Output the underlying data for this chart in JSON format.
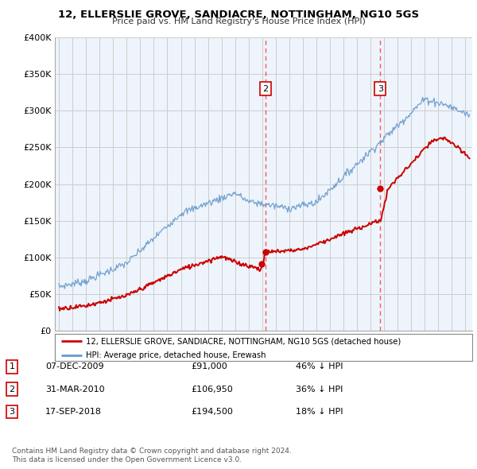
{
  "title": "12, ELLERSLIE GROVE, SANDIACRE, NOTTINGHAM, NG10 5GS",
  "subtitle": "Price paid vs. HM Land Registry's House Price Index (HPI)",
  "hpi_color": "#6699cc",
  "price_color": "#cc0000",
  "dashed_line_color": "#ff4444",
  "background_color": "#ffffff",
  "plot_bg_color": "#eef4fc",
  "grid_color": "#cccccc",
  "ylim": [
    0,
    400000
  ],
  "yticks": [
    0,
    50000,
    100000,
    150000,
    200000,
    250000,
    300000,
    350000,
    400000
  ],
  "xmin": 1994.7,
  "xmax": 2025.5,
  "transactions": [
    {
      "label": "1",
      "date": "07-DEC-2009",
      "price": 91000,
      "price_str": "£91,000",
      "pct": "46% ↓ HPI",
      "x_year": 2009.93,
      "show_on_chart": false
    },
    {
      "label": "2",
      "date": "31-MAR-2010",
      "price": 106950,
      "price_str": "£106,950",
      "pct": "36% ↓ HPI",
      "x_year": 2010.25,
      "show_on_chart": true
    },
    {
      "label": "3",
      "date": "17-SEP-2018",
      "price": 194500,
      "price_str": "£194,500",
      "pct": "18% ↓ HPI",
      "x_year": 2018.71,
      "show_on_chart": true
    }
  ],
  "legend_property_label": "12, ELLERSLIE GROVE, SANDIACRE, NOTTINGHAM, NG10 5GS (detached house)",
  "legend_hpi_label": "HPI: Average price, detached house, Erewash",
  "footnote1": "Contains HM Land Registry data © Crown copyright and database right 2024.",
  "footnote2": "This data is licensed under the Open Government Licence v3.0."
}
